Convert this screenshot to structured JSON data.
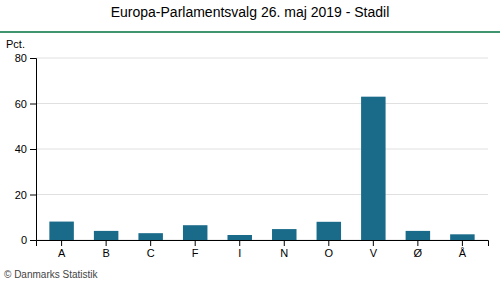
{
  "chart_data": {
    "type": "bar",
    "title": "Europa-Parlamentsvalg 26. maj 2019 - Stadil",
    "ylabel": "Pct.",
    "categories": [
      "A",
      "B",
      "C",
      "F",
      "I",
      "N",
      "O",
      "V",
      "Ø",
      "Å"
    ],
    "values": [
      8.1,
      4.0,
      3.0,
      6.5,
      2.2,
      4.8,
      8.0,
      63.0,
      4.0,
      2.5
    ],
    "color": "#1a6b8a",
    "ylim": [
      0,
      80
    ],
    "yticks": [
      0,
      20,
      40,
      60,
      80
    ],
    "grid": true,
    "annotations": [
      "© Danmarks Statistik"
    ]
  }
}
